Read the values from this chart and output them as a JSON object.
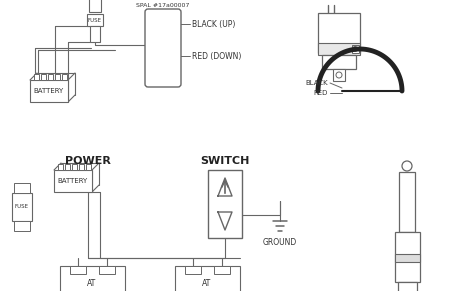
{
  "bg_color": "#ffffff",
  "line_color": "#666666",
  "text_color": "#333333",
  "top": {
    "spal_label": "SPAL #17a00007",
    "black_label": "BLACK (UP)",
    "red_label": "RED (DOWN)",
    "black_label2": "BLACK",
    "red_label2": "RED"
  },
  "bottom": {
    "power_label": "POWER",
    "switch_label": "SWITCH",
    "ground_label": "GROUND",
    "battery_label": "BATTERY",
    "fuse_label": "FUSE"
  }
}
